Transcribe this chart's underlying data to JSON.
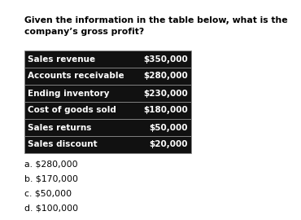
{
  "title": "Given the information in the table below, what is the\ncompany’s gross profit?",
  "table_rows": [
    [
      "Sales revenue",
      "$350,000"
    ],
    [
      "Accounts receivable",
      "$280,000"
    ],
    [
      "Ending inventory",
      "$230,000"
    ],
    [
      "Cost of goods sold",
      "$180,000"
    ],
    [
      "Sales returns",
      "$50,000"
    ],
    [
      "Sales discount",
      "$20,000"
    ]
  ],
  "table_bg": "#111111",
  "table_text_color": "#ffffff",
  "table_border_color": "#888888",
  "options": [
    "a. $280,000",
    "b. $170,000",
    "c. $50,000",
    "d. $100,000"
  ],
  "bg_color": "#ffffff",
  "title_fontsize": 7.8,
  "table_fontsize": 7.5,
  "option_fontsize": 7.8
}
